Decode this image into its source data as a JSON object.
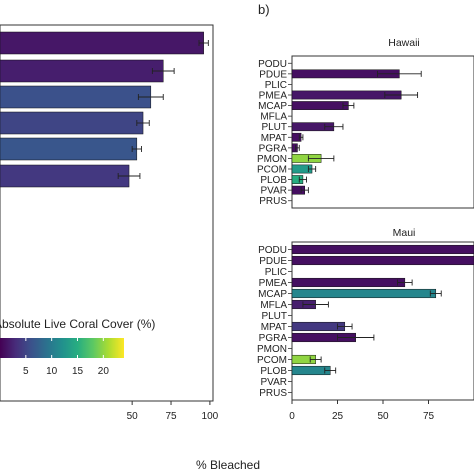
{
  "panel_b_label": "b)",
  "xlabel": "% Bleached",
  "colors": [
    "#440154",
    "#472c7a",
    "#3b518b",
    "#2c718e",
    "#21908d",
    "#27ad81",
    "#5cc863",
    "#aadc32",
    "#fde725"
  ],
  "legend": {
    "title": "Absolute Live Coral Cover (%)",
    "ticks": [
      "5",
      "10",
      "15",
      "20"
    ],
    "tick_values": [
      5,
      10,
      15,
      20
    ],
    "range": [
      0,
      24
    ]
  },
  "chart_data": [
    {
      "panel": "a",
      "type": "bar",
      "orientation": "horizontal",
      "xlim": [
        0,
        100
      ],
      "xticks": [
        "50",
        "75",
        "100"
      ],
      "xtick_values": [
        50,
        75,
        100
      ],
      "values": [
        96,
        70,
        62,
        57,
        53,
        48
      ],
      "errors": [
        3,
        7,
        8,
        4,
        3,
        7
      ],
      "cover": [
        1.5,
        2.0,
        6.0,
        5.0,
        6.5,
        4.0
      ]
    },
    {
      "panel": "b",
      "type": "bar",
      "orientation": "horizontal",
      "facet_title": "Hawaii",
      "categories": [
        "PODU",
        "PDUE",
        "PLIC",
        "PMEA",
        "MCAP",
        "MFLA",
        "PLUT",
        "MPAT",
        "PGRA",
        "PMON",
        "PCOM",
        "PLOB",
        "PVAR",
        "PRUS"
      ],
      "values": [
        0,
        59,
        0,
        60,
        31,
        0,
        23,
        5,
        3,
        16,
        11,
        6,
        7,
        0
      ],
      "errors": [
        0,
        12,
        0,
        9,
        3,
        0,
        5,
        1,
        1,
        7,
        2,
        2,
        2,
        0
      ],
      "cover": [
        0,
        1.0,
        0,
        1.5,
        1.0,
        0,
        1.5,
        1.0,
        1.0,
        20.0,
        13.0,
        15.0,
        1.0,
        0
      ],
      "xlim": [
        0,
        100
      ]
    },
    {
      "panel": "b",
      "type": "bar",
      "orientation": "horizontal",
      "facet_title": "Maui",
      "categories": [
        "PODU",
        "PDUE",
        "PLIC",
        "PMEA",
        "MCAP",
        "MFLA",
        "PLUT",
        "MPAT",
        "PGRA",
        "PMON",
        "PCOM",
        "PLOB",
        "PVAR",
        "PRUS"
      ],
      "values": [
        100,
        100,
        0,
        62,
        79,
        13,
        0,
        29,
        35,
        0,
        13,
        21,
        0,
        0
      ],
      "errors": [
        0,
        0,
        0,
        4,
        3,
        7,
        0,
        4,
        10,
        0,
        3,
        3,
        0,
        0
      ],
      "cover": [
        1.0,
        1.0,
        0,
        1.0,
        11.0,
        2.0,
        0,
        4.0,
        1.0,
        0,
        20.0,
        11.0,
        0,
        0
      ],
      "xlim": [
        0,
        100
      ],
      "xticks": [
        "0",
        "25",
        "50",
        "75"
      ],
      "xtick_values": [
        0,
        25,
        50,
        75
      ]
    }
  ]
}
